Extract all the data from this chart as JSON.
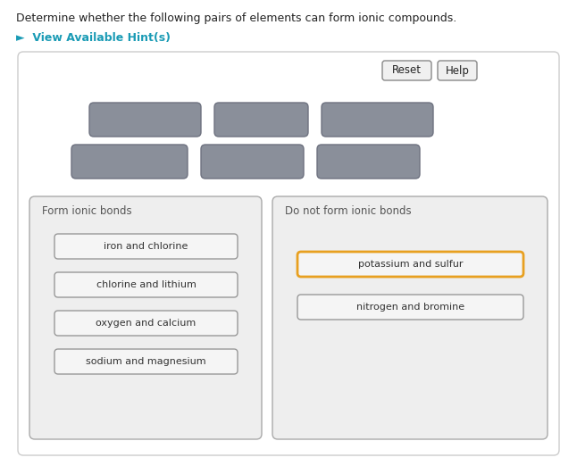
{
  "title_text": "Determine whether the following pairs of elements can form ionic compounds.",
  "hint_text": "►  View Available Hint(s)",
  "hint_color": "#1a9bb5",
  "title_color": "#222222",
  "bg_outer": "#ffffff",
  "reset_label": "Reset",
  "help_label": "Help",
  "gray_color": "#8a8f9a",
  "gray_border": "#6e7280",
  "left_box_label": "Form ionic bonds",
  "right_box_label": "Do not form ionic bonds",
  "left_items": [
    "iron and chlorine",
    "chlorine and lithium",
    "oxygen and calcium",
    "sodium and magnesium"
  ],
  "right_items": [
    "potassium and sulfur",
    "nitrogen and bromine"
  ],
  "left_item_border": "#999999",
  "right_item_border_1": "#e8a020",
  "right_item_border_2": "#999999",
  "item_bg": "#f5f5f5",
  "panel_bg": "#eeeeee",
  "panel_border": "#aaaaaa",
  "outer_bg": "#ffffff",
  "outer_border": "#cccccc"
}
